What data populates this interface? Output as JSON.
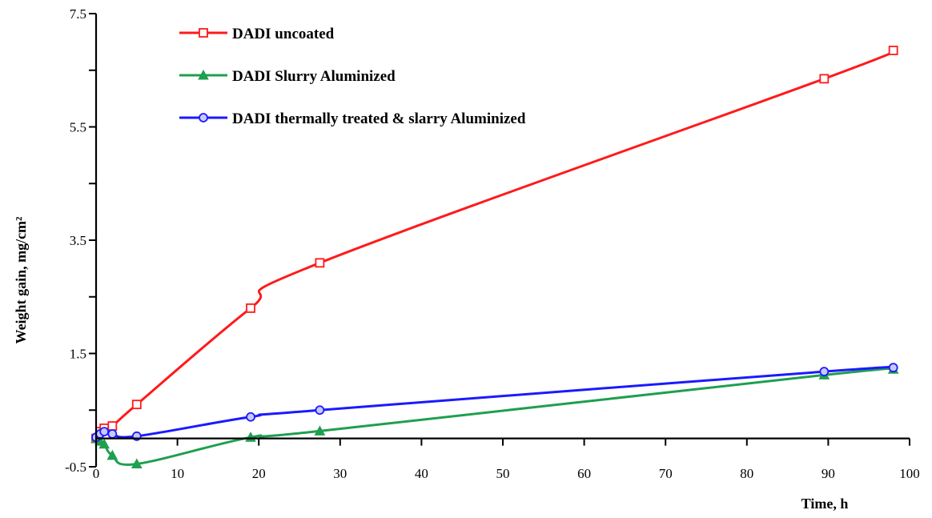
{
  "chart_data": {
    "type": "line",
    "title": "",
    "xlabel": "Time, h",
    "ylabel": "Weight gain, mg/cm²",
    "xlim": [
      0,
      100
    ],
    "ylim": [
      -0.5,
      7.5
    ],
    "x_ticks": [
      0,
      10,
      20,
      30,
      40,
      50,
      60,
      70,
      80,
      90,
      100
    ],
    "x_tick_labels": [
      "0",
      "10",
      "20",
      "30",
      "40",
      "50",
      "60",
      "70",
      "80",
      "90",
      "100"
    ],
    "y_ticks": [
      -0.5,
      0.5,
      1.5,
      2.5,
      3.5,
      4.5,
      5.5,
      6.5,
      7.5
    ],
    "y_tick_labels": [
      "-0.5",
      "",
      "1.5",
      "",
      "3.5",
      "",
      "5.5",
      "",
      "7.5"
    ],
    "grid": false,
    "legend_position": "top-left",
    "series": [
      {
        "name": "DADI uncoated",
        "color": "#ff1a1a",
        "marker": "square",
        "x": [
          0,
          0.5,
          1,
          2,
          5,
          19,
          27.5,
          89.5,
          98
        ],
        "y": [
          0,
          0.12,
          0.18,
          0.22,
          0.6,
          2.3,
          3.1,
          6.35,
          6.85
        ]
      },
      {
        "name": "DADI Slurry Aluminized",
        "color": "#1f9f4f",
        "marker": "triangle",
        "x": [
          0,
          0.5,
          1,
          2,
          5,
          19,
          27.5,
          89.5,
          98
        ],
        "y": [
          0,
          -0.05,
          -0.1,
          -0.3,
          -0.45,
          0.02,
          0.13,
          1.12,
          1.22
        ]
      },
      {
        "name": "DADI thermally treated &  slarry Aluminized",
        "color": "#1a1aff",
        "marker": "circle",
        "x": [
          0,
          0.5,
          1,
          2,
          5,
          19,
          27.5,
          89.5,
          98
        ],
        "y": [
          0.02,
          0.08,
          0.12,
          0.08,
          0.04,
          0.38,
          0.5,
          1.18,
          1.25
        ]
      }
    ]
  }
}
